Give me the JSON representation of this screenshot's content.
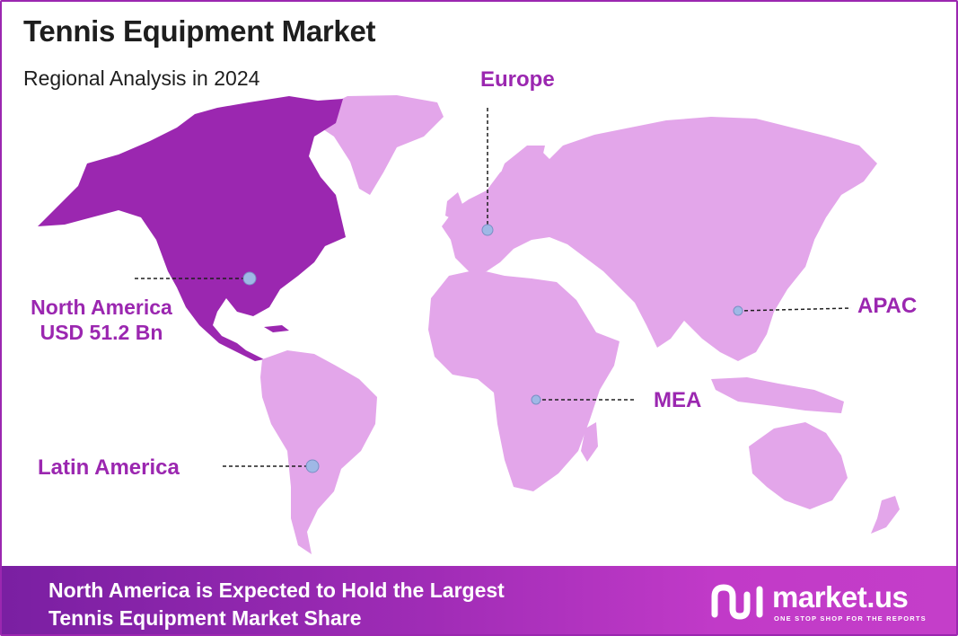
{
  "header": {
    "title": "Tennis Equipment Market",
    "subtitle": "Regional Analysis in 2024"
  },
  "regions": [
    {
      "name": "North America",
      "value": "USD 51.2 Bn",
      "highlighted": true
    },
    {
      "name": "Europe"
    },
    {
      "name": "APAC"
    },
    {
      "name": "MEA"
    },
    {
      "name": "Latin America"
    }
  ],
  "colors": {
    "highlight": "#9b27b0",
    "land": "#e3a6ea",
    "marker": "#9fb8e6",
    "border": "#9b27b0"
  },
  "footer": {
    "line1": "North America is Expected to Hold the Largest",
    "line2": "Tennis Equipment Market Share"
  },
  "brand": {
    "name": "market.us",
    "tagline": "ONE STOP SHOP FOR THE REPORTS"
  }
}
